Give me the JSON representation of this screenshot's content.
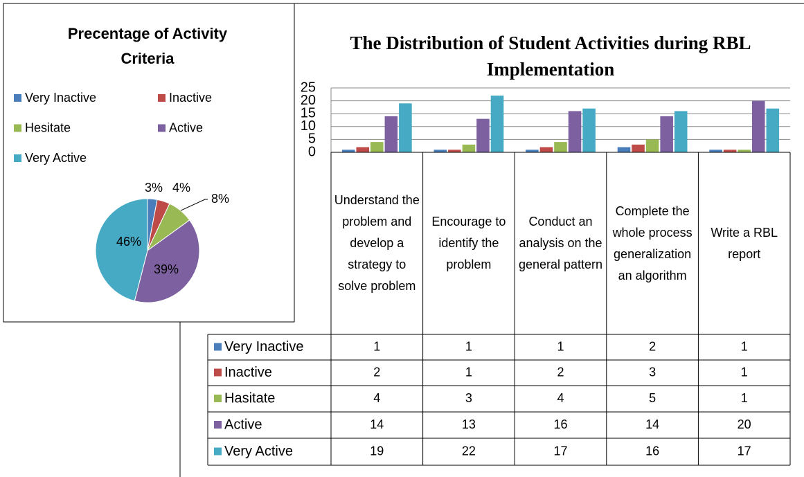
{
  "chart_data": [
    {
      "type": "pie",
      "title": "Precentage of Activity Criteria",
      "categories": [
        "Very Inactive",
        "Inactive",
        "Hesitate",
        "Active",
        "Very Active"
      ],
      "values": [
        3,
        4,
        8,
        39,
        46
      ],
      "value_labels": [
        "3%",
        "4%",
        "8%",
        "39%",
        "46%"
      ],
      "colors": [
        "#4a7ebb",
        "#be4b48",
        "#98b954",
        "#7d60a0",
        "#46aac5"
      ]
    },
    {
      "type": "bar",
      "title": "The Distribution of Student Activities during RBL Implementation",
      "categories": [
        "Understand the problem and develop a strategy to solve problem",
        "Encourage to identify the problem",
        "Conduct an analysis on the general pattern",
        "Complete the whole process generalization an algorithm",
        "Write a RBL report"
      ],
      "series": [
        {
          "name": "Very Inactive",
          "color": "#4a7ebb",
          "values": [
            1,
            1,
            1,
            2,
            1
          ]
        },
        {
          "name": "Inactive",
          "color": "#be4b48",
          "values": [
            2,
            1,
            2,
            3,
            1
          ]
        },
        {
          "name": "Hasitate",
          "color": "#98b954",
          "values": [
            4,
            3,
            4,
            5,
            1
          ]
        },
        {
          "name": "Active",
          "color": "#7d60a0",
          "values": [
            14,
            13,
            16,
            14,
            20
          ]
        },
        {
          "name": "Very Active",
          "color": "#46aac5",
          "values": [
            19,
            22,
            17,
            16,
            17
          ]
        }
      ],
      "ylim": [
        0,
        25
      ],
      "yticks": [
        0,
        5,
        10,
        15,
        20,
        25
      ],
      "grid": true
    }
  ]
}
